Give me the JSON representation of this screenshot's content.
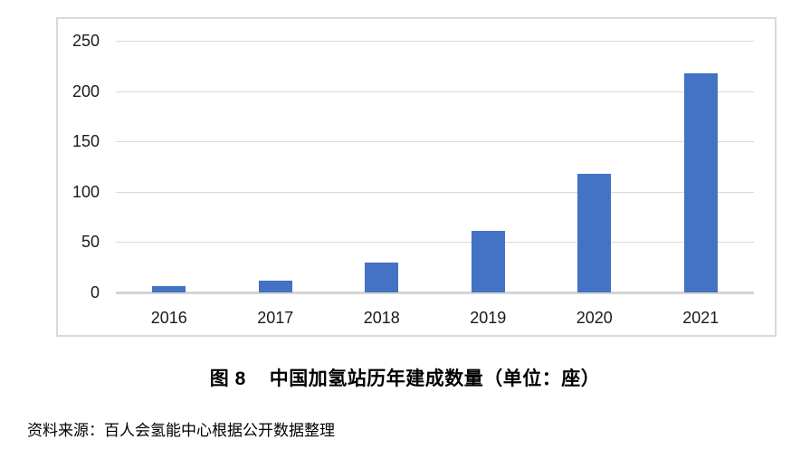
{
  "figure": {
    "caption_label": "图 8",
    "caption_title": "中国加氢站历年建成数量（单位：座）",
    "source_note": "资料来源：百人会氢能中心根据公开数据整理"
  },
  "chart_data": {
    "type": "bar",
    "categories": [
      "2016",
      "2017",
      "2018",
      "2019",
      "2020",
      "2021"
    ],
    "values": [
      6,
      12,
      30,
      61,
      118,
      218
    ],
    "title": "中国加氢站历年建成数量",
    "unit": "座",
    "xlabel": "",
    "ylabel": "",
    "ylim": [
      0,
      250
    ],
    "yticks": [
      0,
      50,
      100,
      150,
      200,
      250
    ],
    "grid": true,
    "legend": false,
    "bar_color": "#4472C4",
    "gridline_color": "#D9D9D9",
    "axis_line_color": "#D4D4D4",
    "frame_border_color": "#D9D9D9",
    "tick_label_color": "#1A1A1A"
  }
}
